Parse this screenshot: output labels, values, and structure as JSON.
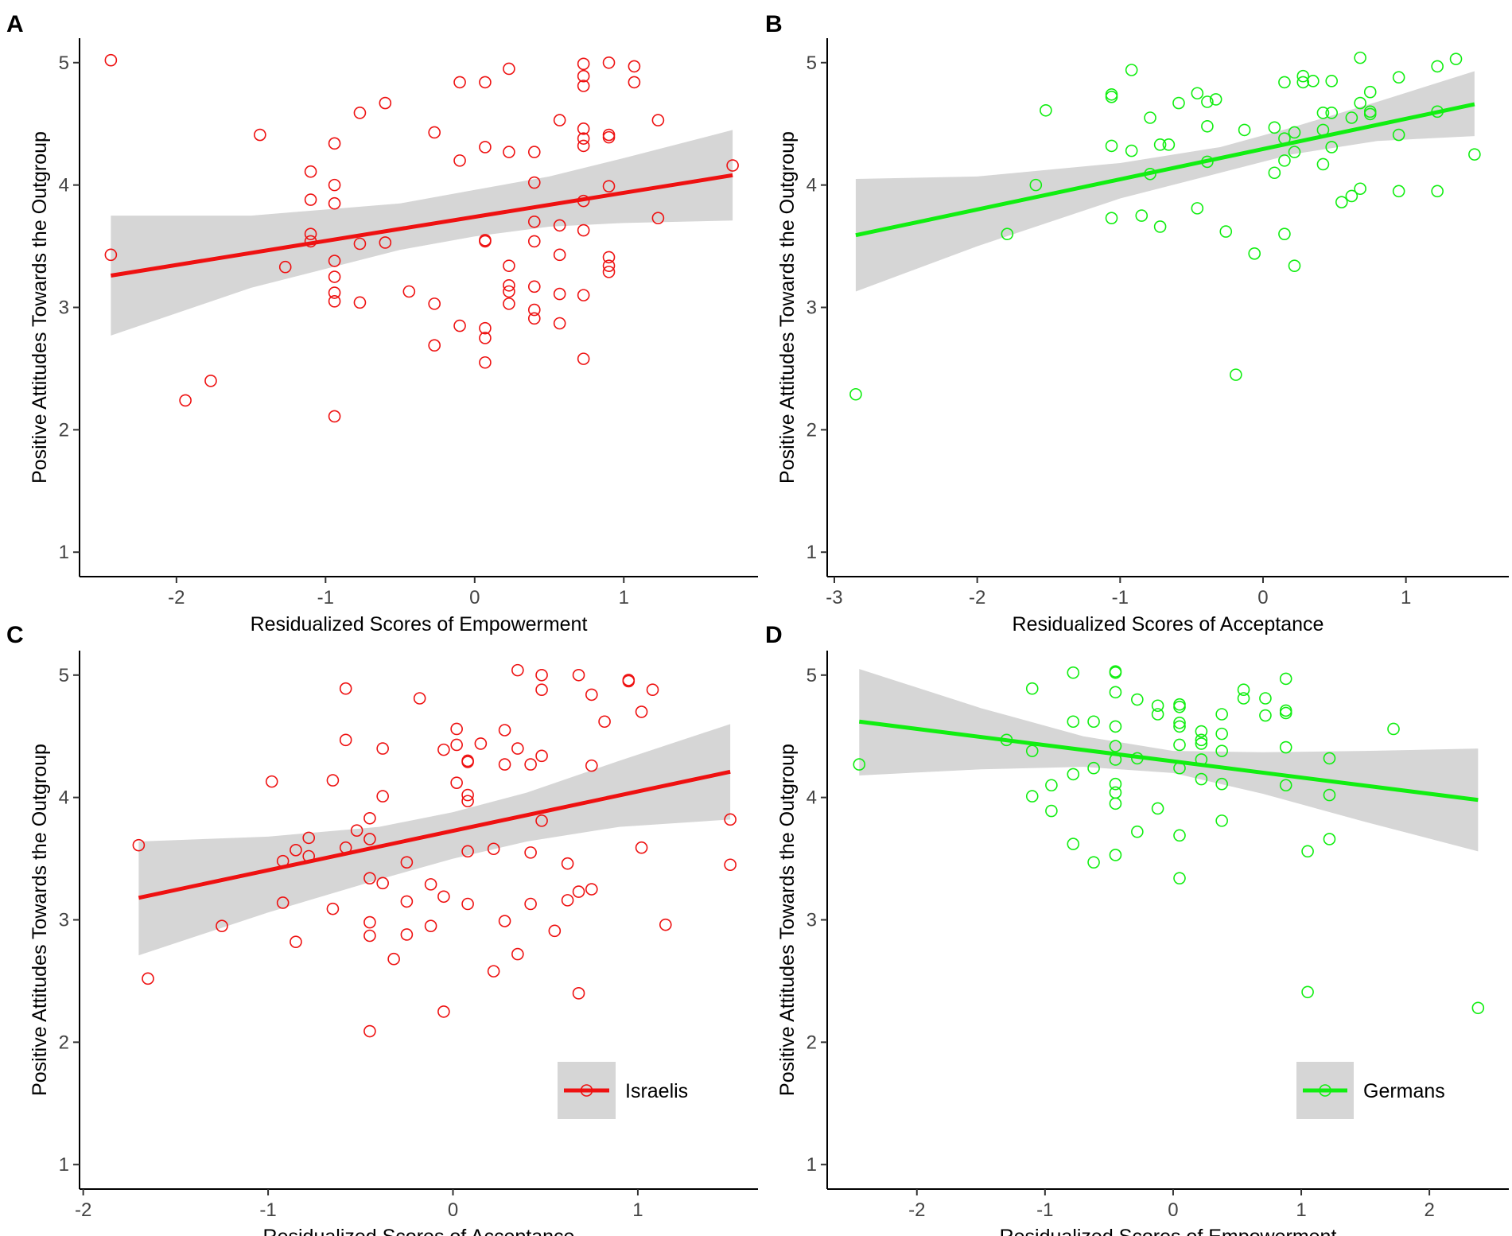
{
  "colors": {
    "israelis": "#ee1111",
    "germans": "#11ee11",
    "band": "#d6d6d6"
  },
  "chart_data": [
    {
      "panel": "A",
      "type": "scatter",
      "group": "Israelis",
      "color_key": "israelis",
      "xlabel": "Residualized Scores of Empowerment",
      "ylabel": "Positive Attitudes Towards the Outgroup",
      "xlim": [
        -2.65,
        1.9
      ],
      "ylim": [
        0.8,
        5.2
      ],
      "xticks": [
        -2,
        -1,
        0,
        1
      ],
      "yticks": [
        1,
        2,
        3,
        4,
        5
      ],
      "fit": {
        "x": [
          -2.44,
          1.73
        ],
        "y": [
          3.26,
          4.08
        ]
      },
      "band": {
        "x": [
          -2.44,
          -1.5,
          -0.5,
          0.0,
          0.5,
          1.0,
          1.73
        ],
        "lower": [
          2.77,
          3.16,
          3.47,
          3.58,
          3.66,
          3.69,
          3.71
        ],
        "upper": [
          3.75,
          3.75,
          3.85,
          3.96,
          4.07,
          4.22,
          4.45
        ]
      },
      "points": [
        [
          -2.44,
          5.02
        ],
        [
          -2.44,
          3.43
        ],
        [
          -1.94,
          2.24
        ],
        [
          -1.77,
          2.4
        ],
        [
          -1.44,
          4.41
        ],
        [
          -1.27,
          3.33
        ],
        [
          -1.1,
          4.11
        ],
        [
          -1.1,
          3.88
        ],
        [
          -1.1,
          3.6
        ],
        [
          -1.1,
          3.54
        ],
        [
          -0.94,
          4.34
        ],
        [
          -0.94,
          4.0
        ],
        [
          -0.94,
          3.85
        ],
        [
          -0.94,
          3.38
        ],
        [
          -0.94,
          3.25
        ],
        [
          -0.94,
          3.12
        ],
        [
          -0.94,
          3.05
        ],
        [
          -0.94,
          2.11
        ],
        [
          -0.77,
          4.59
        ],
        [
          -0.77,
          3.52
        ],
        [
          -0.77,
          3.04
        ],
        [
          -0.6,
          4.67
        ],
        [
          -0.6,
          3.53
        ],
        [
          -0.44,
          3.13
        ],
        [
          -0.27,
          4.43
        ],
        [
          -0.27,
          3.03
        ],
        [
          -0.27,
          2.69
        ],
        [
          -0.1,
          4.84
        ],
        [
          -0.1,
          4.2
        ],
        [
          -0.1,
          2.85
        ],
        [
          0.07,
          4.84
        ],
        [
          0.07,
          4.31
        ],
        [
          0.07,
          3.55
        ],
        [
          0.07,
          3.54
        ],
        [
          0.07,
          2.83
        ],
        [
          0.07,
          2.75
        ],
        [
          0.07,
          2.55
        ],
        [
          0.23,
          4.95
        ],
        [
          0.23,
          4.27
        ],
        [
          0.23,
          3.34
        ],
        [
          0.23,
          3.18
        ],
        [
          0.23,
          3.13
        ],
        [
          0.23,
          3.03
        ],
        [
          0.4,
          4.27
        ],
        [
          0.4,
          4.02
        ],
        [
          0.4,
          3.7
        ],
        [
          0.4,
          3.54
        ],
        [
          0.4,
          3.17
        ],
        [
          0.4,
          2.98
        ],
        [
          0.4,
          2.91
        ],
        [
          0.57,
          4.53
        ],
        [
          0.57,
          3.67
        ],
        [
          0.57,
          3.43
        ],
        [
          0.57,
          3.11
        ],
        [
          0.57,
          2.87
        ],
        [
          0.73,
          4.99
        ],
        [
          0.73,
          4.89
        ],
        [
          0.73,
          4.81
        ],
        [
          0.73,
          4.46
        ],
        [
          0.73,
          4.38
        ],
        [
          0.73,
          4.32
        ],
        [
          0.73,
          3.87
        ],
        [
          0.73,
          3.63
        ],
        [
          0.73,
          3.1
        ],
        [
          0.73,
          2.58
        ],
        [
          0.9,
          5.0
        ],
        [
          0.9,
          4.41
        ],
        [
          0.9,
          4.39
        ],
        [
          0.9,
          3.99
        ],
        [
          0.9,
          3.41
        ],
        [
          0.9,
          3.34
        ],
        [
          0.9,
          3.29
        ],
        [
          1.07,
          4.97
        ],
        [
          1.07,
          4.84
        ],
        [
          1.23,
          4.53
        ],
        [
          1.23,
          3.73
        ],
        [
          1.73,
          4.16
        ]
      ]
    },
    {
      "panel": "B",
      "type": "scatter",
      "group": "Germans",
      "color_key": "germans",
      "xlabel": "Residualized Scores of Acceptance",
      "ylabel": "Positive Attitudes Towards the Outgroup",
      "xlim": [
        -3.05,
        1.72
      ],
      "ylim": [
        0.8,
        5.2
      ],
      "xticks": [
        -3,
        -2,
        -1,
        0,
        1
      ],
      "yticks": [
        1,
        2,
        3,
        4,
        5
      ],
      "fit": {
        "x": [
          -2.85,
          1.48
        ],
        "y": [
          3.59,
          4.66
        ]
      },
      "band": {
        "x": [
          -2.85,
          -2.0,
          -1.0,
          -0.3,
          0.2,
          0.8,
          1.48
        ],
        "lower": [
          3.13,
          3.5,
          3.89,
          4.1,
          4.25,
          4.36,
          4.4
        ],
        "upper": [
          4.05,
          4.07,
          4.18,
          4.31,
          4.47,
          4.68,
          4.93
        ]
      },
      "points": [
        [
          -2.85,
          2.29
        ],
        [
          -1.79,
          3.6
        ],
        [
          -1.59,
          4.0
        ],
        [
          -1.52,
          4.61
        ],
        [
          -1.06,
          4.74
        ],
        [
          -1.06,
          4.72
        ],
        [
          -1.06,
          4.32
        ],
        [
          -1.06,
          3.73
        ],
        [
          -0.92,
          4.94
        ],
        [
          -0.92,
          4.28
        ],
        [
          -0.85,
          3.75
        ],
        [
          -0.79,
          4.55
        ],
        [
          -0.79,
          4.09
        ],
        [
          -0.72,
          4.33
        ],
        [
          -0.72,
          3.66
        ],
        [
          -0.66,
          4.33
        ],
        [
          -0.59,
          4.67
        ],
        [
          -0.46,
          4.75
        ],
        [
          -0.46,
          3.81
        ],
        [
          -0.39,
          4.68
        ],
        [
          -0.39,
          4.48
        ],
        [
          -0.39,
          4.19
        ],
        [
          -0.33,
          4.7
        ],
        [
          -0.26,
          3.62
        ],
        [
          -0.19,
          2.45
        ],
        [
          -0.13,
          4.45
        ],
        [
          -0.06,
          3.44
        ],
        [
          0.08,
          4.47
        ],
        [
          0.08,
          4.1
        ],
        [
          0.15,
          4.84
        ],
        [
          0.15,
          4.38
        ],
        [
          0.15,
          4.2
        ],
        [
          0.15,
          3.6
        ],
        [
          0.22,
          4.43
        ],
        [
          0.22,
          4.27
        ],
        [
          0.22,
          3.34
        ],
        [
          0.28,
          4.89
        ],
        [
          0.28,
          4.84
        ],
        [
          0.35,
          4.85
        ],
        [
          0.42,
          4.59
        ],
        [
          0.42,
          4.45
        ],
        [
          0.42,
          4.17
        ],
        [
          0.48,
          4.85
        ],
        [
          0.48,
          4.59
        ],
        [
          0.48,
          4.31
        ],
        [
          0.55,
          3.86
        ],
        [
          0.62,
          4.55
        ],
        [
          0.62,
          3.91
        ],
        [
          0.68,
          5.04
        ],
        [
          0.68,
          4.67
        ],
        [
          0.68,
          3.97
        ],
        [
          0.75,
          4.76
        ],
        [
          0.75,
          4.6
        ],
        [
          0.75,
          4.58
        ],
        [
          0.95,
          4.88
        ],
        [
          0.95,
          4.41
        ],
        [
          0.95,
          3.95
        ],
        [
          1.22,
          4.97
        ],
        [
          1.22,
          4.6
        ],
        [
          1.22,
          3.95
        ],
        [
          1.35,
          5.03
        ],
        [
          1.48,
          4.25
        ]
      ]
    },
    {
      "panel": "C",
      "type": "scatter",
      "group": "Israelis",
      "color_key": "israelis",
      "xlabel": "Residualized Scores of Acceptance",
      "ylabel": "Positive Attitudes Towards the Outgroup",
      "xlim": [
        -2.02,
        1.65
      ],
      "ylim": [
        0.8,
        5.2
      ],
      "xticks": [
        -2,
        -1,
        0,
        1
      ],
      "yticks": [
        1,
        2,
        3,
        4,
        5
      ],
      "fit": {
        "x": [
          -1.7,
          1.5
        ],
        "y": [
          3.18,
          4.21
        ]
      },
      "band": {
        "x": [
          -1.7,
          -1.0,
          -0.4,
          0.0,
          0.4,
          0.9,
          1.5
        ],
        "lower": [
          2.71,
          3.06,
          3.33,
          3.5,
          3.64,
          3.76,
          3.82
        ],
        "upper": [
          3.64,
          3.68,
          3.76,
          3.88,
          4.04,
          4.3,
          4.6
        ]
      },
      "points": [
        [
          -1.7,
          3.61
        ],
        [
          -1.65,
          2.52
        ],
        [
          -1.25,
          2.95
        ],
        [
          -0.98,
          4.13
        ],
        [
          -0.92,
          3.48
        ],
        [
          -0.92,
          3.14
        ],
        [
          -0.85,
          3.57
        ],
        [
          -0.85,
          2.82
        ],
        [
          -0.78,
          3.67
        ],
        [
          -0.78,
          3.52
        ],
        [
          -0.65,
          4.14
        ],
        [
          -0.65,
          3.09
        ],
        [
          -0.58,
          4.89
        ],
        [
          -0.58,
          4.47
        ],
        [
          -0.58,
          3.59
        ],
        [
          -0.52,
          3.73
        ],
        [
          -0.45,
          3.83
        ],
        [
          -0.45,
          3.66
        ],
        [
          -0.45,
          3.34
        ],
        [
          -0.45,
          2.98
        ],
        [
          -0.45,
          2.87
        ],
        [
          -0.45,
          2.09
        ],
        [
          -0.38,
          4.4
        ],
        [
          -0.38,
          4.01
        ],
        [
          -0.38,
          3.3
        ],
        [
          -0.32,
          2.68
        ],
        [
          -0.25,
          3.47
        ],
        [
          -0.25,
          3.15
        ],
        [
          -0.25,
          2.88
        ],
        [
          -0.18,
          4.81
        ],
        [
          -0.12,
          3.29
        ],
        [
          -0.12,
          2.95
        ],
        [
          -0.05,
          4.39
        ],
        [
          -0.05,
          3.19
        ],
        [
          -0.05,
          2.25
        ],
        [
          0.02,
          4.56
        ],
        [
          0.02,
          4.43
        ],
        [
          0.02,
          4.12
        ],
        [
          0.08,
          4.3
        ],
        [
          0.08,
          4.29
        ],
        [
          0.08,
          4.02
        ],
        [
          0.08,
          3.97
        ],
        [
          0.08,
          3.56
        ],
        [
          0.08,
          3.13
        ],
        [
          0.15,
          4.44
        ],
        [
          0.22,
          3.58
        ],
        [
          0.22,
          2.58
        ],
        [
          0.28,
          4.55
        ],
        [
          0.28,
          4.27
        ],
        [
          0.28,
          2.99
        ],
        [
          0.35,
          5.04
        ],
        [
          0.35,
          4.4
        ],
        [
          0.35,
          2.72
        ],
        [
          0.42,
          4.27
        ],
        [
          0.42,
          3.55
        ],
        [
          0.42,
          3.13
        ],
        [
          0.48,
          5.0
        ],
        [
          0.48,
          4.88
        ],
        [
          0.48,
          4.34
        ],
        [
          0.48,
          3.81
        ],
        [
          0.55,
          2.91
        ],
        [
          0.62,
          3.46
        ],
        [
          0.62,
          3.16
        ],
        [
          0.68,
          5.0
        ],
        [
          0.68,
          3.23
        ],
        [
          0.68,
          2.4
        ],
        [
          0.75,
          4.84
        ],
        [
          0.75,
          4.26
        ],
        [
          0.75,
          3.25
        ],
        [
          0.82,
          4.62
        ],
        [
          0.95,
          4.96
        ],
        [
          0.95,
          4.95
        ],
        [
          1.02,
          4.7
        ],
        [
          1.02,
          3.59
        ],
        [
          1.08,
          4.88
        ],
        [
          1.15,
          2.96
        ],
        [
          1.5,
          3.82
        ],
        [
          1.5,
          3.45
        ]
      ],
      "legend": {
        "label": "Israelis",
        "placement": "bottom-right"
      }
    },
    {
      "panel": "D",
      "type": "scatter",
      "group": "Germans",
      "color_key": "germans",
      "xlabel": "Residualized Scores of Empowerment",
      "ylabel": "Positive Attitudes Towards the Outgroup",
      "xlim": [
        -2.7,
        2.62
      ],
      "ylim": [
        0.8,
        5.2
      ],
      "xticks": [
        -2,
        -1,
        0,
        1,
        2
      ],
      "yticks": [
        1,
        2,
        3,
        4,
        5
      ],
      "fit": {
        "x": [
          -2.45,
          2.38
        ],
        "y": [
          4.62,
          3.98
        ]
      },
      "band": {
        "x": [
          -2.45,
          -1.5,
          -0.7,
          0.0,
          0.7,
          1.5,
          2.38
        ],
        "lower": [
          4.18,
          4.23,
          4.25,
          4.2,
          4.03,
          3.8,
          3.56
        ],
        "upper": [
          5.05,
          4.73,
          4.5,
          4.38,
          4.37,
          4.38,
          4.4
        ]
      },
      "points": [
        [
          -2.45,
          4.27
        ],
        [
          -1.3,
          4.47
        ],
        [
          -1.1,
          4.89
        ],
        [
          -1.1,
          4.38
        ],
        [
          -1.1,
          4.01
        ],
        [
          -0.95,
          4.1
        ],
        [
          -0.95,
          3.89
        ],
        [
          -0.78,
          5.02
        ],
        [
          -0.78,
          4.62
        ],
        [
          -0.78,
          4.19
        ],
        [
          -0.78,
          3.62
        ],
        [
          -0.62,
          4.62
        ],
        [
          -0.62,
          4.24
        ],
        [
          -0.62,
          3.47
        ],
        [
          -0.45,
          5.03
        ],
        [
          -0.45,
          5.02
        ],
        [
          -0.45,
          4.86
        ],
        [
          -0.45,
          4.58
        ],
        [
          -0.45,
          4.42
        ],
        [
          -0.45,
          4.31
        ],
        [
          -0.45,
          4.11
        ],
        [
          -0.45,
          4.04
        ],
        [
          -0.45,
          3.95
        ],
        [
          -0.45,
          3.53
        ],
        [
          -0.28,
          4.8
        ],
        [
          -0.28,
          4.32
        ],
        [
          -0.28,
          3.72
        ],
        [
          -0.12,
          4.75
        ],
        [
          -0.12,
          4.68
        ],
        [
          -0.12,
          3.91
        ],
        [
          0.05,
          4.76
        ],
        [
          0.05,
          4.74
        ],
        [
          0.05,
          4.61
        ],
        [
          0.05,
          4.58
        ],
        [
          0.05,
          4.43
        ],
        [
          0.05,
          4.24
        ],
        [
          0.05,
          3.69
        ],
        [
          0.05,
          3.34
        ],
        [
          0.22,
          4.54
        ],
        [
          0.22,
          4.47
        ],
        [
          0.22,
          4.44
        ],
        [
          0.22,
          4.31
        ],
        [
          0.22,
          4.15
        ],
        [
          0.38,
          4.68
        ],
        [
          0.38,
          4.52
        ],
        [
          0.38,
          4.38
        ],
        [
          0.38,
          4.11
        ],
        [
          0.38,
          3.81
        ],
        [
          0.55,
          4.88
        ],
        [
          0.55,
          4.81
        ],
        [
          0.72,
          4.81
        ],
        [
          0.72,
          4.67
        ],
        [
          0.88,
          4.97
        ],
        [
          0.88,
          4.71
        ],
        [
          0.88,
          4.69
        ],
        [
          0.88,
          4.41
        ],
        [
          0.88,
          4.1
        ],
        [
          1.05,
          3.56
        ],
        [
          1.05,
          2.41
        ],
        [
          1.22,
          4.32
        ],
        [
          1.22,
          4.02
        ],
        [
          1.22,
          3.66
        ],
        [
          1.72,
          4.56
        ],
        [
          2.38,
          2.28
        ]
      ],
      "legend": {
        "label": "Germans",
        "placement": "bottom-right"
      }
    }
  ]
}
